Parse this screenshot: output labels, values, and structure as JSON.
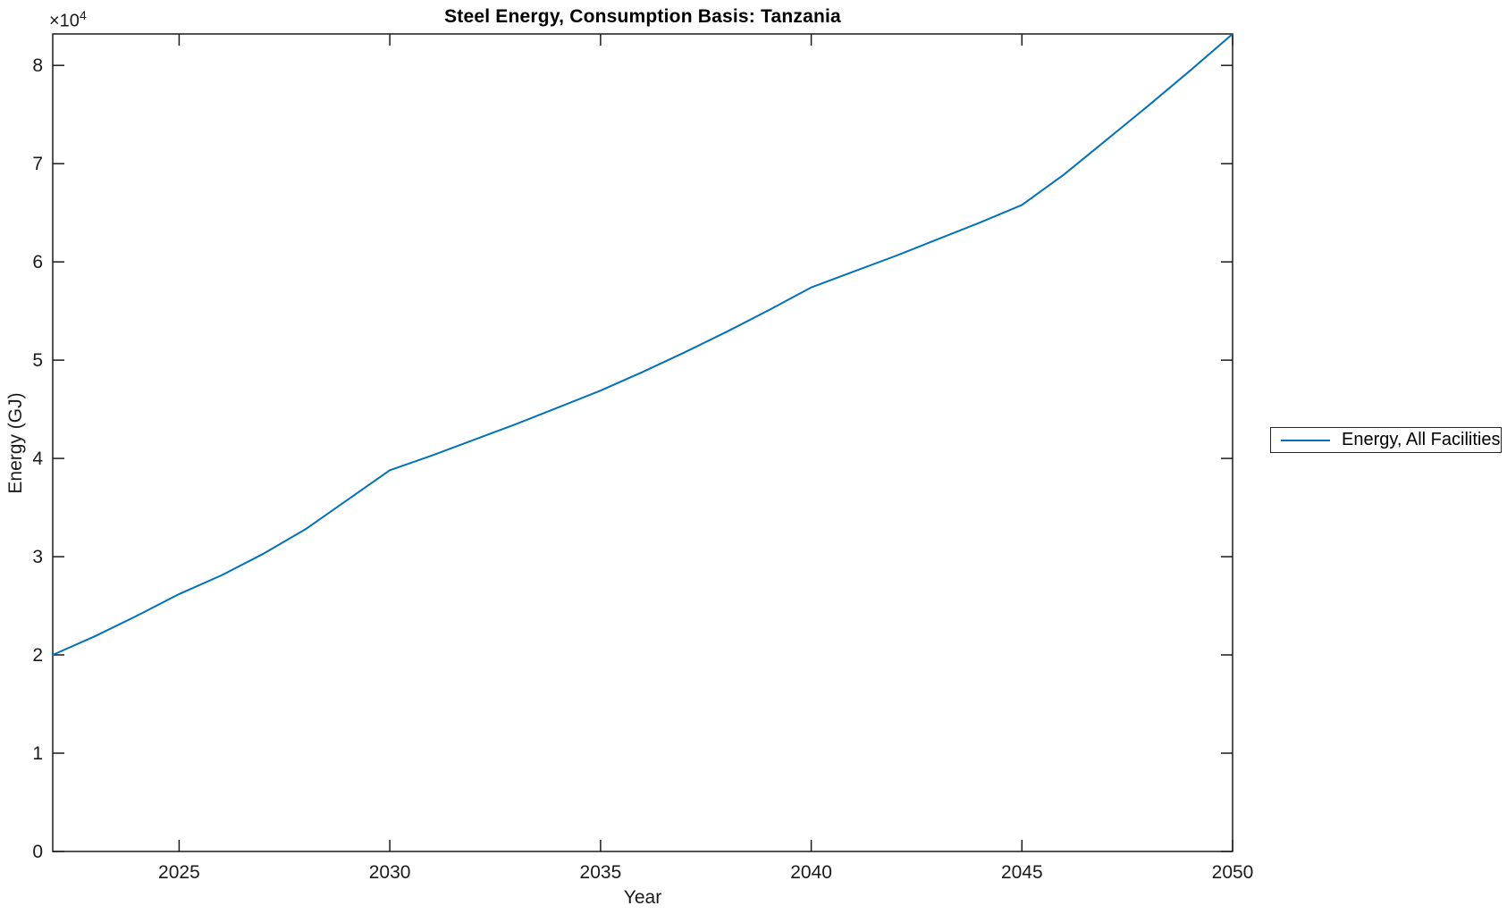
{
  "figure": {
    "background_color": "#ffffff",
    "axis_color": "#1a1a1a"
  },
  "offset": {
    "base": "×10",
    "exponent": "4"
  },
  "chart_data": {
    "type": "line",
    "title": "Steel Energy, Consumption Basis: Tanzania",
    "xlabel": "Year",
    "ylabel": "Energy (GJ)",
    "y_offset_text": "×10^4",
    "xlim": [
      2022,
      2050
    ],
    "ylim": [
      0,
      83200
    ],
    "grid": false,
    "box": true,
    "x_ticks": [
      2025,
      2030,
      2035,
      2040,
      2045,
      2050
    ],
    "y_ticks": [
      {
        "value": 0,
        "label": "0"
      },
      {
        "value": 10000,
        "label": "1"
      },
      {
        "value": 20000,
        "label": "2"
      },
      {
        "value": 30000,
        "label": "3"
      },
      {
        "value": 40000,
        "label": "4"
      },
      {
        "value": 50000,
        "label": "5"
      },
      {
        "value": 60000,
        "label": "6"
      },
      {
        "value": 70000,
        "label": "7"
      },
      {
        "value": 80000,
        "label": "8"
      }
    ],
    "legend": {
      "position": "right-outside",
      "entries": [
        {
          "label": "Energy, All Facilities",
          "color": "#0072BD"
        }
      ]
    },
    "series": [
      {
        "name": "Energy, All Facilities",
        "color": "#0072BD",
        "x": [
          2022,
          2023,
          2024,
          2025,
          2026,
          2027,
          2028,
          2029,
          2030,
          2031,
          2032,
          2033,
          2034,
          2035,
          2036,
          2037,
          2038,
          2039,
          2040,
          2041,
          2042,
          2043,
          2044,
          2045,
          2046,
          2047,
          2048,
          2049,
          2050
        ],
        "y": [
          20000,
          21900,
          24000,
          26200,
          28100,
          30300,
          32800,
          35800,
          38800,
          40300,
          41900,
          43500,
          45200,
          46900,
          48800,
          50800,
          52900,
          55100,
          57400,
          59000,
          60600,
          62300,
          64000,
          65800,
          68900,
          72400,
          75900,
          79500,
          83200
        ]
      }
    ]
  }
}
